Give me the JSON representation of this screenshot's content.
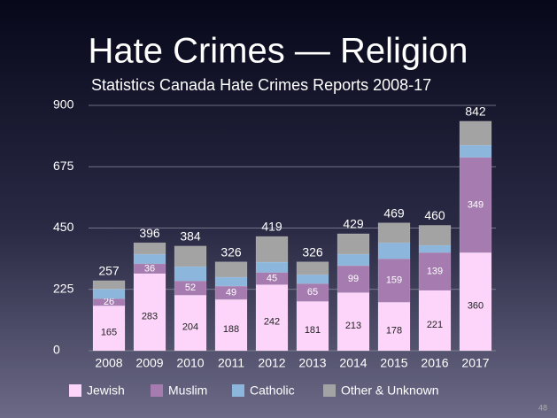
{
  "chart_data": {
    "type": "stacked_bar",
    "title": "Hate Crimes — Religion",
    "subtitle": "Statistics Canada Hate Crimes Reports 2008-17",
    "categories": [
      "2008",
      "2009",
      "2010",
      "2011",
      "2012",
      "2013",
      "2014",
      "2015",
      "2016",
      "2017"
    ],
    "series": [
      {
        "name": "Jewish",
        "color": "#fdd5fb",
        "values": [
          165,
          283,
          204,
          188,
          242,
          181,
          213,
          178,
          221,
          360
        ],
        "labels": true
      },
      {
        "name": "Muslim",
        "color": "#a67cb0",
        "values": [
          26,
          36,
          52,
          49,
          45,
          65,
          99,
          159,
          139,
          349
        ],
        "labels": true
      },
      {
        "name": "Catholic",
        "color": "#8cb6dc",
        "values": [
          35,
          35,
          53,
          33,
          38,
          33,
          42,
          59,
          27,
          45
        ],
        "labels": false
      },
      {
        "name": "Other & Unknown",
        "color": "#a3a3a3",
        "values": [
          31,
          42,
          75,
          56,
          94,
          47,
          75,
          73,
          73,
          88
        ],
        "labels": false
      }
    ],
    "totals": [
      257,
      396,
      384,
      326,
      419,
      326,
      429,
      469,
      460,
      842
    ],
    "ylim": [
      0,
      900
    ],
    "yticks": [
      0,
      225,
      450,
      675,
      900
    ],
    "grid": true
  },
  "slide_number": "48"
}
